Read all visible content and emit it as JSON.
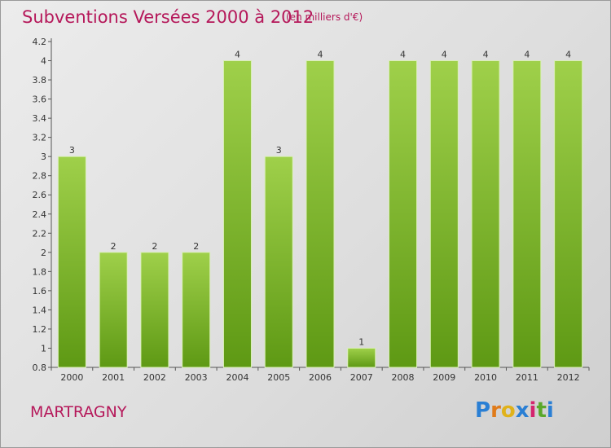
{
  "header": {
    "title": "Subventions Versées 2000 à 2012",
    "subtitle": "(en milliers d'€)"
  },
  "footer": {
    "commune": "MARTRAGNY",
    "logo": {
      "letters": [
        "P",
        "r",
        "o",
        "x",
        "i",
        "t",
        "i"
      ],
      "colors": [
        "#2a7fd4",
        "#e07b1a",
        "#e0b21a",
        "#2a7fd4",
        "#d4246e",
        "#5aa82a",
        "#2a7fd4"
      ]
    }
  },
  "colors": {
    "accent": "#b5185a",
    "bar_light": "#9fd04a",
    "bar_dark": "#5e9914"
  },
  "chart_data": {
    "type": "bar",
    "title": "Subventions Versées 2000 à 2012",
    "categories": [
      "2000",
      "2001",
      "2002",
      "2003",
      "2004",
      "2005",
      "2006",
      "2007",
      "2008",
      "2009",
      "2010",
      "2011",
      "2012"
    ],
    "values": [
      3,
      2,
      2,
      2,
      4,
      3,
      4,
      1,
      4,
      4,
      4,
      4,
      4
    ],
    "data_labels": [
      "3",
      "2",
      "2",
      "2",
      "4",
      "3",
      "4",
      "1",
      "4",
      "4",
      "4",
      "4",
      "4"
    ],
    "ylim": [
      0.8,
      4.2
    ],
    "yticks": [
      "0.8",
      "1",
      "1.2",
      "1.4",
      "1.6",
      "1.8",
      "2",
      "2.2",
      "2.4",
      "2.6",
      "2.8",
      "3",
      "3.2",
      "3.4",
      "3.6",
      "3.8",
      "4",
      "4.2"
    ],
    "ytick_values": [
      0.8,
      1,
      1.2,
      1.4,
      1.6,
      1.8,
      2,
      2.2,
      2.4,
      2.6,
      2.8,
      3,
      3.2,
      3.4,
      3.6,
      3.8,
      4,
      4.2
    ],
    "xlabel": "",
    "ylabel": "",
    "grid": false,
    "legend": "none"
  }
}
